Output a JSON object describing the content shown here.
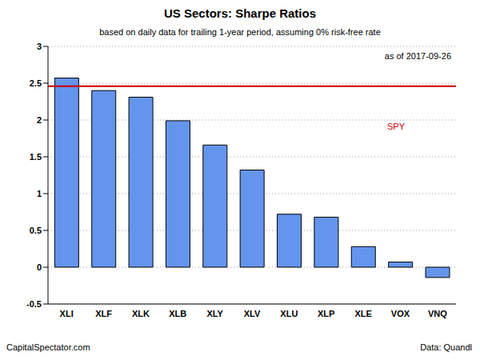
{
  "chart_data": {
    "type": "bar",
    "title": "US Sectors: Sharpe Ratios",
    "subtitle": "based on daily data for trailing 1-year period, assuming 0% risk-free rate",
    "date_note": "as of  2017-09-26",
    "source": "CapitalSpectator.com",
    "data_credit": "Data: Quandl",
    "categories": [
      "XLI",
      "XLF",
      "XLK",
      "XLB",
      "XLY",
      "XLV",
      "XLU",
      "XLP",
      "XLE",
      "VOX",
      "VNQ"
    ],
    "values": [
      2.57,
      2.4,
      2.31,
      1.99,
      1.66,
      1.32,
      0.72,
      0.68,
      0.28,
      0.07,
      -0.14
    ],
    "color": "#6495ed",
    "ylim": [
      -0.5,
      3
    ],
    "yticks": [
      -0.5,
      0,
      0.5,
      1,
      1.5,
      2,
      2.5,
      3
    ],
    "grid": true,
    "reference_line": {
      "label": "SPY",
      "value": 2.46,
      "color": "#cc0000"
    }
  }
}
